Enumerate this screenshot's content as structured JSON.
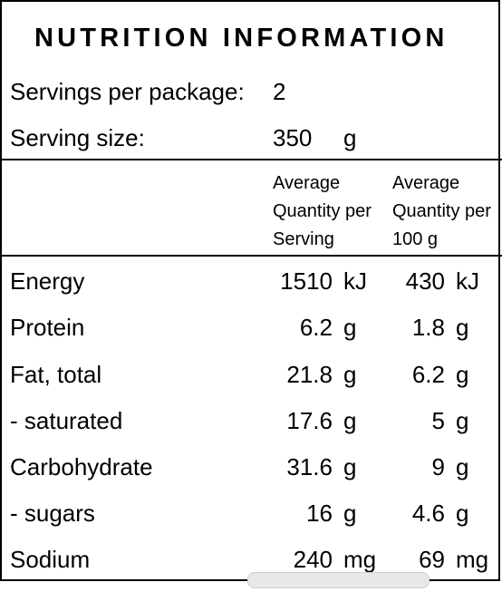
{
  "title": "NUTRITION INFORMATION",
  "servings": {
    "label": "Servings per package:",
    "value": "2"
  },
  "serving_size": {
    "label": "Serving size:",
    "value": "350",
    "unit": "g"
  },
  "columns": {
    "per_serving": [
      "Average",
      "Quantity per",
      "Serving"
    ],
    "per_100g": [
      "Average",
      "Quantity per",
      "100 g"
    ]
  },
  "rows": [
    {
      "nutrient": "Energy",
      "per_serving": "1510",
      "per_serving_unit": "kJ",
      "per_100g": "430",
      "per_100g_unit": "kJ"
    },
    {
      "nutrient": "Protein",
      "per_serving": "6.2",
      "per_serving_unit": "g",
      "per_100g": "1.8",
      "per_100g_unit": "g"
    },
    {
      "nutrient": "Fat, total",
      "per_serving": "21.8",
      "per_serving_unit": "g",
      "per_100g": "6.2",
      "per_100g_unit": "g"
    },
    {
      "nutrient": "- saturated",
      "per_serving": "17.6",
      "per_serving_unit": "g",
      "per_100g": "5",
      "per_100g_unit": "g"
    },
    {
      "nutrient": "Carbohydrate",
      "per_serving": "31.6",
      "per_serving_unit": "g",
      "per_100g": "9",
      "per_100g_unit": "g"
    },
    {
      "nutrient": "- sugars",
      "per_serving": "16",
      "per_serving_unit": "g",
      "per_100g": "4.6",
      "per_100g_unit": "g"
    },
    {
      "nutrient": "Sodium",
      "per_serving": "240",
      "per_serving_unit": "mg",
      "per_100g": "69",
      "per_100g_unit": "mg"
    }
  ]
}
